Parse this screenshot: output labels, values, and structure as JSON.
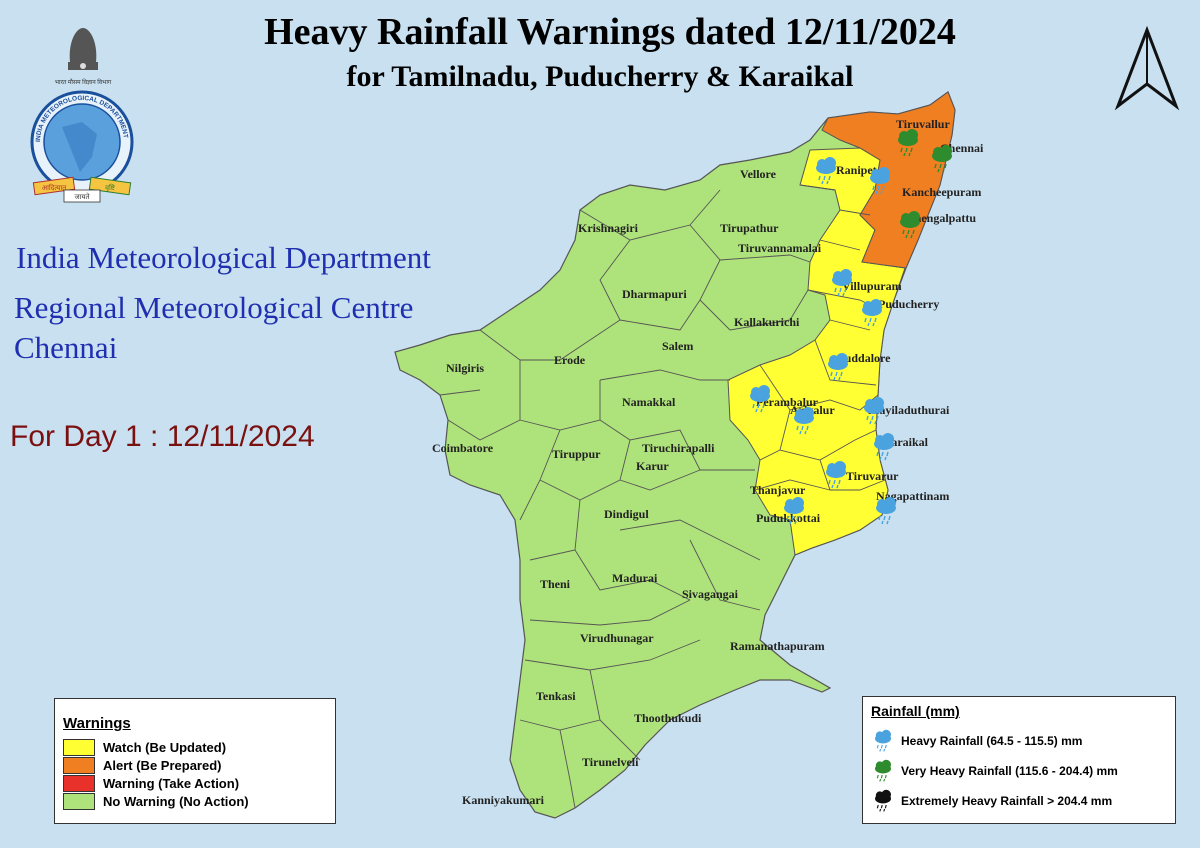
{
  "title": "Heavy Rainfall Warnings dated 12/11/2024",
  "subtitle": "for Tamilnadu, Puducherry & Karaikal",
  "organization": {
    "line1": "India Meteorological Department",
    "line2": "Regional Meteorological Centre",
    "line3": "Chennai"
  },
  "logo_text": {
    "ring": "INDIA METEOROLOGICAL DEPARTMENT",
    "top_hindi": "भारत मौसम विज्ञान विभाग",
    "ribbon_left": "आदित्यात",
    "ribbon_right": "वृष्टि",
    "ribbon_center": "जायते"
  },
  "day_label": "For Day 1 : 12/11/2024",
  "colors": {
    "watch": "#ffff33",
    "alert": "#f07f22",
    "warning": "#e8312a",
    "no_warning": "#aee27a",
    "sea": "#c8e0f0"
  },
  "warnings_legend": {
    "heading": "Warnings",
    "items": [
      {
        "label": "Watch (Be Updated)",
        "color": "#ffff33"
      },
      {
        "label": "Alert (Be Prepared)",
        "color": "#f07f22"
      },
      {
        "label": "Warning (Take Action)",
        "color": "#e8312a"
      },
      {
        "label": "No Warning (No Action)",
        "color": "#aee27a"
      }
    ]
  },
  "rainfall_legend": {
    "heading": "Rainfall (mm)",
    "items": [
      {
        "label": "Heavy Rainfall (64.5 - 115.5) mm",
        "icon": "blue-rain-cloud-icon"
      },
      {
        "label": "Very Heavy Rainfall (115.6 - 204.4) mm",
        "icon": "green-rain-cloud-icon"
      },
      {
        "label": "Extremely Heavy Rainfall > 204.4 mm",
        "icon": "black-rain-cloud-icon"
      }
    ]
  },
  "districts": [
    {
      "name": "Tiruvallur",
      "level": "alert",
      "rain": "very-heavy"
    },
    {
      "name": "Chennai",
      "level": "alert",
      "rain": "very-heavy"
    },
    {
      "name": "Kancheepuram",
      "level": "alert",
      "rain": "none"
    },
    {
      "name": "Chengalpattu",
      "level": "alert",
      "rain": "very-heavy"
    },
    {
      "name": "Ranipet",
      "level": "watch",
      "rain": "heavy"
    },
    {
      "name": "Vellore",
      "level": "no_warning",
      "rain": "none"
    },
    {
      "name": "Krishnagiri",
      "level": "no_warning",
      "rain": "none"
    },
    {
      "name": "Tirupathur",
      "level": "no_warning",
      "rain": "none"
    },
    {
      "name": "Tiruvannamalai",
      "level": "watch",
      "rain": "heavy"
    },
    {
      "name": "Dharmapuri",
      "level": "no_warning",
      "rain": "none"
    },
    {
      "name": "Villupuram",
      "level": "watch",
      "rain": "heavy"
    },
    {
      "name": "Puducherry",
      "level": "watch",
      "rain": "heavy"
    },
    {
      "name": "Kallakurichi",
      "level": "no_warning",
      "rain": "none"
    },
    {
      "name": "Salem",
      "level": "no_warning",
      "rain": "none"
    },
    {
      "name": "Erode",
      "level": "no_warning",
      "rain": "none"
    },
    {
      "name": "Nilgiris",
      "level": "no_warning",
      "rain": "none"
    },
    {
      "name": "Cuddalore",
      "level": "watch",
      "rain": "heavy"
    },
    {
      "name": "Namakkal",
      "level": "no_warning",
      "rain": "none"
    },
    {
      "name": "Perambalur",
      "level": "watch",
      "rain": "heavy"
    },
    {
      "name": "Ariyalur",
      "level": "watch",
      "rain": "heavy"
    },
    {
      "name": "Mayiladuthurai",
      "level": "watch",
      "rain": "heavy"
    },
    {
      "name": "Karaikal",
      "level": "watch",
      "rain": "heavy"
    },
    {
      "name": "Coimbatore",
      "level": "no_warning",
      "rain": "none"
    },
    {
      "name": "Tiruppur",
      "level": "no_warning",
      "rain": "none"
    },
    {
      "name": "Tiruchirapalli",
      "level": "no_warning",
      "rain": "none"
    },
    {
      "name": "Karur",
      "level": "no_warning",
      "rain": "none"
    },
    {
      "name": "Tiruvarur",
      "level": "watch",
      "rain": "heavy"
    },
    {
      "name": "Thanjavur",
      "level": "watch",
      "rain": "none"
    },
    {
      "name": "Nagapattinam",
      "level": "watch",
      "rain": "heavy"
    },
    {
      "name": "Pudukkottai",
      "level": "watch",
      "rain": "heavy"
    },
    {
      "name": "Dindigul",
      "level": "no_warning",
      "rain": "none"
    },
    {
      "name": "Theni",
      "level": "no_warning",
      "rain": "none"
    },
    {
      "name": "Madurai",
      "level": "no_warning",
      "rain": "none"
    },
    {
      "name": "Sivagangai",
      "level": "no_warning",
      "rain": "none"
    },
    {
      "name": "Virudhunagar",
      "level": "no_warning",
      "rain": "none"
    },
    {
      "name": "Ramanathapuram",
      "level": "no_warning",
      "rain": "none"
    },
    {
      "name": "Tenkasi",
      "level": "no_warning",
      "rain": "none"
    },
    {
      "name": "Thoothukudi",
      "level": "no_warning",
      "rain": "none"
    },
    {
      "name": "Tirunelveli",
      "level": "no_warning",
      "rain": "none"
    },
    {
      "name": "Kanniyakumari",
      "level": "no_warning",
      "rain": "none"
    }
  ]
}
